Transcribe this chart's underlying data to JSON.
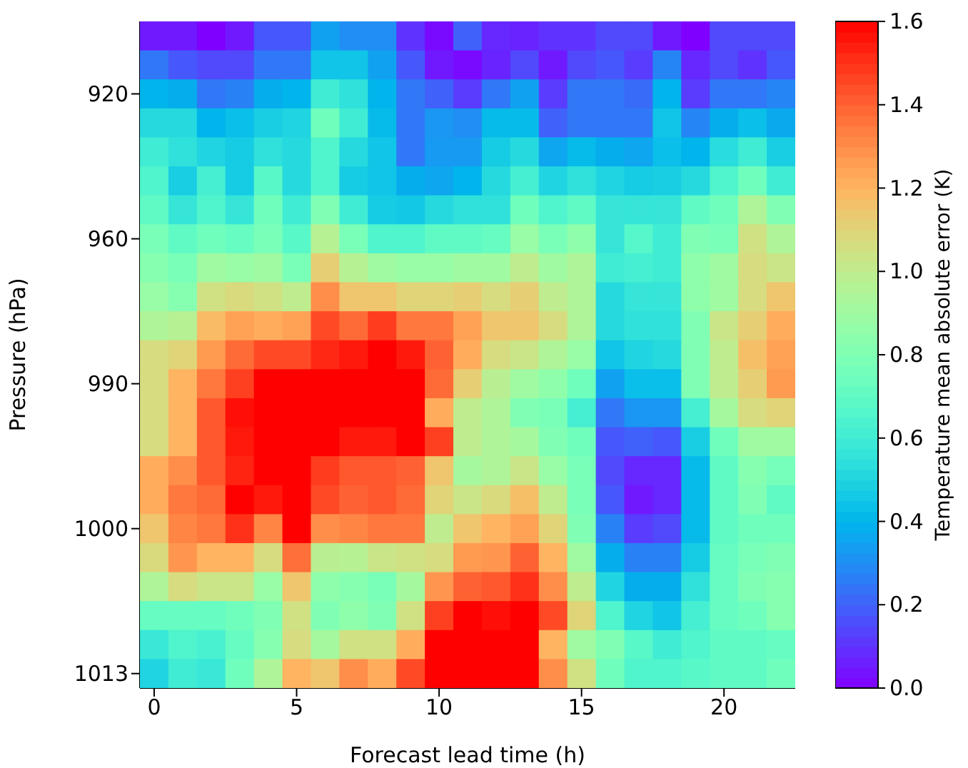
{
  "chart_data": {
    "type": "heatmap",
    "xlabel": "Forecast lead time (h)",
    "ylabel": "Pressure (hPa)",
    "clabel": "Temperature mean absolute error (K)",
    "x": [
      0,
      1,
      2,
      3,
      4,
      5,
      6,
      7,
      8,
      9,
      10,
      11,
      12,
      13,
      14,
      15,
      16,
      17,
      18,
      19,
      20,
      21,
      22
    ],
    "xlim": [
      -0.5,
      22.5
    ],
    "xticks": [
      0,
      5,
      10,
      15,
      20
    ],
    "y_categories": [
      null,
      null,
      "920",
      null,
      null,
      null,
      null,
      "960",
      null,
      null,
      null,
      null,
      "990",
      null,
      null,
      null,
      null,
      "1000",
      null,
      null,
      null,
      null,
      "1013"
    ],
    "clim": [
      0,
      1.6
    ],
    "cticks": [
      {
        "value": 0,
        "label": "0.0"
      },
      0.2,
      0.4,
      0.6,
      0.8,
      {
        "value": 1,
        "label": "1.0"
      },
      1.2,
      1.4,
      1.6
    ],
    "cells": [
      [
        0.05,
        0.05,
        0.0,
        0.05,
        0.18,
        0.18,
        0.35,
        0.3,
        0.3,
        0.1,
        0.02,
        0.2,
        0.08,
        0.07,
        0.1,
        0.1,
        0.15,
        0.15,
        0.05,
        0.0,
        0.15,
        0.15,
        0.15
      ],
      [
        0.25,
        0.18,
        0.15,
        0.15,
        0.25,
        0.25,
        0.45,
        0.45,
        0.35,
        0.18,
        0.05,
        0.02,
        0.07,
        0.15,
        0.05,
        0.15,
        0.18,
        0.12,
        0.28,
        0.08,
        0.15,
        0.1,
        0.18
      ],
      [
        0.4,
        0.38,
        0.25,
        0.27,
        0.38,
        0.4,
        0.6,
        0.55,
        0.4,
        0.25,
        0.2,
        0.12,
        0.25,
        0.35,
        0.12,
        0.25,
        0.25,
        0.22,
        0.4,
        0.12,
        0.25,
        0.25,
        0.28
      ],
      [
        0.52,
        0.52,
        0.4,
        0.43,
        0.48,
        0.5,
        0.75,
        0.6,
        0.42,
        0.25,
        0.32,
        0.3,
        0.42,
        0.42,
        0.2,
        0.25,
        0.25,
        0.25,
        0.45,
        0.28,
        0.38,
        0.43,
        0.37
      ],
      [
        0.6,
        0.55,
        0.5,
        0.47,
        0.55,
        0.52,
        0.65,
        0.52,
        0.45,
        0.25,
        0.33,
        0.33,
        0.47,
        0.52,
        0.36,
        0.42,
        0.38,
        0.36,
        0.43,
        0.4,
        0.53,
        0.6,
        0.48
      ],
      [
        0.65,
        0.48,
        0.62,
        0.47,
        0.68,
        0.52,
        0.65,
        0.47,
        0.45,
        0.38,
        0.36,
        0.4,
        0.52,
        0.62,
        0.5,
        0.55,
        0.5,
        0.47,
        0.48,
        0.52,
        0.65,
        0.75,
        0.6
      ],
      [
        0.7,
        0.57,
        0.65,
        0.57,
        0.75,
        0.6,
        0.8,
        0.6,
        0.47,
        0.46,
        0.52,
        0.55,
        0.55,
        0.75,
        0.65,
        0.7,
        0.57,
        0.57,
        0.57,
        0.7,
        0.75,
        0.95,
        0.8
      ],
      [
        0.78,
        0.7,
        0.75,
        0.72,
        0.78,
        0.68,
        0.97,
        0.78,
        0.65,
        0.65,
        0.7,
        0.7,
        0.72,
        0.88,
        0.78,
        0.85,
        0.57,
        0.67,
        0.6,
        0.8,
        0.78,
        1.05,
        0.95
      ],
      [
        0.82,
        0.78,
        0.9,
        0.88,
        0.9,
        0.78,
        1.12,
        0.97,
        0.9,
        0.88,
        0.88,
        0.9,
        0.9,
        1.0,
        0.9,
        0.95,
        0.6,
        0.62,
        0.6,
        0.85,
        0.9,
        1.07,
        1.03
      ],
      [
        0.88,
        0.82,
        1.05,
        1.08,
        1.05,
        1.0,
        1.3,
        1.15,
        1.15,
        1.1,
        1.1,
        1.12,
        1.07,
        1.12,
        1.0,
        0.95,
        0.52,
        0.57,
        0.57,
        0.85,
        0.9,
        1.07,
        1.15
      ],
      [
        0.95,
        0.97,
        1.18,
        1.25,
        1.22,
        1.25,
        1.45,
        1.38,
        1.48,
        1.35,
        1.35,
        1.25,
        1.15,
        1.15,
        1.07,
        0.95,
        0.52,
        0.55,
        0.55,
        0.8,
        1.03,
        1.12,
        1.22
      ],
      [
        1.07,
        1.1,
        1.27,
        1.38,
        1.45,
        1.45,
        1.52,
        1.55,
        1.6,
        1.55,
        1.4,
        1.22,
        1.07,
        1.03,
        0.95,
        0.88,
        0.45,
        0.5,
        0.52,
        0.8,
        1.0,
        1.17,
        1.25
      ],
      [
        1.07,
        1.2,
        1.35,
        1.47,
        1.6,
        1.6,
        1.6,
        1.6,
        1.6,
        1.6,
        1.38,
        1.12,
        0.98,
        0.9,
        0.85,
        0.75,
        0.35,
        0.43,
        0.43,
        0.8,
        1.0,
        1.12,
        1.27
      ],
      [
        1.07,
        1.2,
        1.42,
        1.57,
        1.6,
        1.6,
        1.6,
        1.6,
        1.6,
        1.6,
        1.22,
        1.0,
        0.95,
        0.8,
        0.78,
        0.62,
        0.25,
        0.32,
        0.32,
        0.62,
        0.92,
        1.07,
        1.1
      ],
      [
        1.07,
        1.2,
        1.42,
        1.55,
        1.6,
        1.6,
        1.6,
        1.55,
        1.55,
        1.6,
        1.47,
        1.0,
        0.95,
        0.92,
        0.8,
        0.75,
        0.18,
        0.2,
        0.18,
        0.48,
        0.75,
        0.9,
        0.9
      ],
      [
        1.22,
        1.3,
        1.42,
        1.53,
        1.6,
        1.6,
        1.48,
        1.42,
        1.42,
        1.4,
        1.15,
        0.92,
        0.95,
        1.03,
        0.88,
        0.78,
        0.15,
        0.08,
        0.08,
        0.42,
        0.7,
        0.82,
        0.77
      ],
      [
        1.22,
        1.35,
        1.38,
        1.6,
        1.55,
        1.6,
        1.45,
        1.4,
        1.42,
        1.38,
        1.1,
        1.03,
        1.08,
        1.17,
        1.0,
        0.78,
        0.18,
        0.05,
        0.08,
        0.42,
        0.7,
        0.8,
        0.7
      ],
      [
        1.15,
        1.32,
        1.35,
        1.5,
        1.32,
        1.6,
        1.3,
        1.32,
        1.35,
        1.35,
        1.0,
        1.15,
        1.2,
        1.25,
        1.1,
        0.8,
        0.27,
        0.12,
        0.15,
        0.42,
        0.7,
        0.75,
        0.75
      ],
      [
        1.08,
        1.28,
        1.2,
        1.2,
        1.07,
        1.37,
        0.98,
        0.97,
        1.03,
        1.05,
        1.07,
        1.27,
        1.28,
        1.4,
        1.2,
        0.9,
        0.38,
        0.27,
        0.27,
        0.47,
        0.72,
        0.78,
        0.8
      ],
      [
        0.95,
        1.07,
        1.03,
        1.03,
        0.88,
        1.15,
        0.85,
        0.82,
        0.78,
        0.92,
        1.28,
        1.4,
        1.42,
        1.5,
        1.3,
        1.0,
        0.5,
        0.38,
        0.38,
        0.55,
        0.72,
        0.8,
        0.82
      ],
      [
        0.72,
        0.72,
        0.72,
        0.75,
        0.8,
        1.05,
        0.8,
        0.85,
        0.8,
        1.05,
        1.47,
        1.6,
        1.57,
        1.6,
        1.45,
        1.1,
        0.65,
        0.5,
        0.45,
        0.62,
        0.72,
        0.75,
        0.82
      ],
      [
        0.58,
        0.65,
        0.63,
        0.72,
        0.82,
        1.07,
        0.92,
        1.05,
        1.05,
        1.22,
        1.6,
        1.6,
        1.6,
        1.6,
        1.2,
        0.9,
        0.8,
        0.68,
        0.6,
        0.65,
        0.7,
        0.7,
        0.72
      ],
      [
        0.5,
        0.6,
        0.58,
        0.75,
        0.95,
        1.2,
        1.15,
        1.3,
        1.22,
        1.45,
        1.6,
        1.6,
        1.6,
        1.6,
        1.3,
        1.05,
        0.75,
        0.65,
        0.65,
        0.68,
        0.7,
        0.7,
        0.75
      ]
    ]
  }
}
